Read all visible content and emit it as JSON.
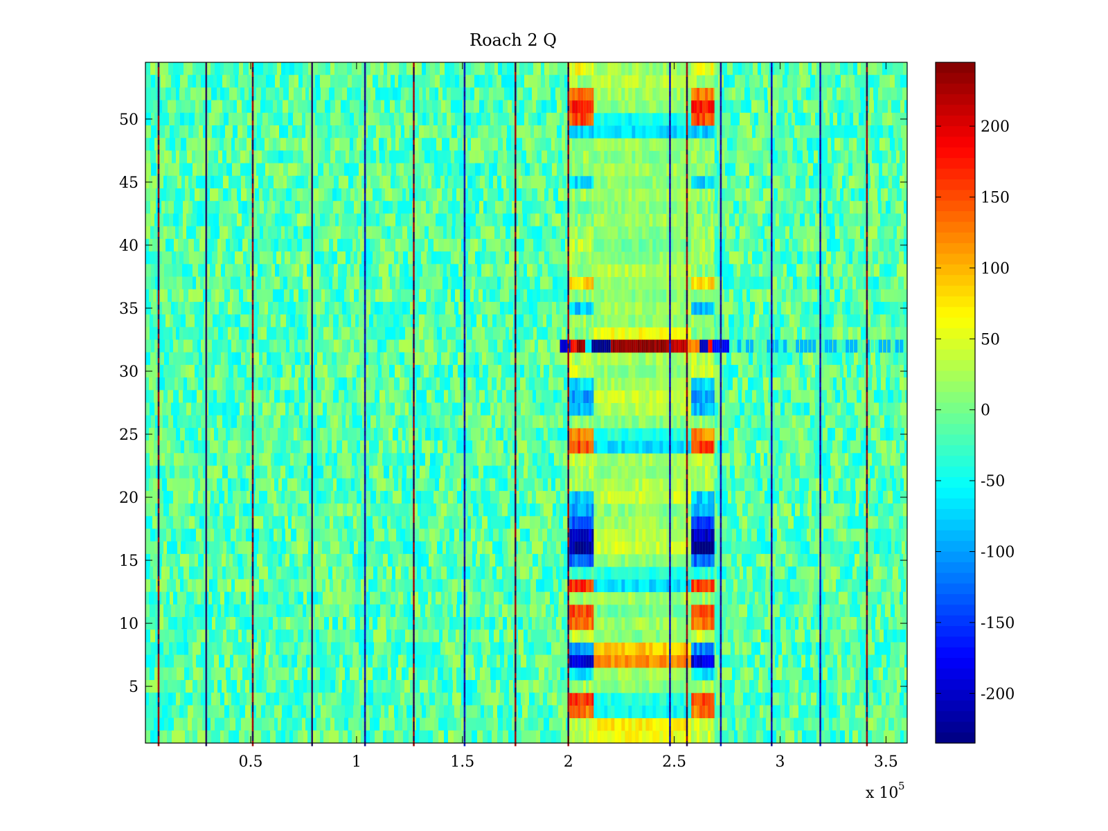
{
  "chart_data": {
    "type": "heatmap",
    "title": "Roach 2 Q",
    "colormap": "jet",
    "x_range": [
      300,
      360000
    ],
    "y_range": [
      0.5,
      54.5
    ],
    "x_ticks": [
      50000,
      100000,
      150000,
      200000,
      250000,
      300000,
      350000
    ],
    "x_tick_labels": [
      "0.5",
      "1",
      "1.5",
      "2",
      "2.5",
      "3",
      "3.5"
    ],
    "x_exponent_label": "x 10",
    "x_exponent_power": "5",
    "y_ticks": [
      5,
      10,
      15,
      20,
      25,
      30,
      35,
      40,
      45,
      50
    ],
    "y_tick_labels": [
      "5",
      "10",
      "15",
      "20",
      "25",
      "30",
      "35",
      "40",
      "45",
      "50"
    ],
    "rows": 54,
    "colorbar": {
      "range": [
        -235,
        245
      ],
      "ticks": [
        -200,
        -150,
        -100,
        -50,
        0,
        50,
        100,
        150,
        200
      ],
      "tick_labels": [
        "-200",
        "-150",
        "-100",
        "-50",
        "0",
        "50",
        "100",
        "150",
        "200"
      ]
    },
    "vertical_lines": [
      {
        "x": 6500,
        "color": "red"
      },
      {
        "x": 29000,
        "color": "dark"
      },
      {
        "x": 51000,
        "color": "red"
      },
      {
        "x": 79000,
        "color": "dark"
      },
      {
        "x": 104000,
        "color": "blue"
      },
      {
        "x": 127000,
        "color": "red"
      },
      {
        "x": 151000,
        "color": "blue"
      },
      {
        "x": 175000,
        "color": "red"
      },
      {
        "x": 200000,
        "color": "red"
      },
      {
        "x": 248000,
        "color": "blue"
      },
      {
        "x": 256000,
        "color": "red"
      },
      {
        "x": 272000,
        "color": "blue"
      },
      {
        "x": 296000,
        "color": "blue"
      },
      {
        "x": 319000,
        "color": "blue"
      },
      {
        "x": 341000,
        "color": "red"
      }
    ],
    "anomaly_bands": [
      {
        "x_start": 200500,
        "x_end": 212000
      },
      {
        "x_start": 258000,
        "x_end": 269000
      }
    ],
    "anomaly_row_values": {
      "1": 40,
      "2": 40,
      "3": 130,
      "4": 160,
      "5": 20,
      "6": -60,
      "7": -190,
      "8": -110,
      "9": 40,
      "10": 130,
      "11": 150,
      "12": 20,
      "13": 160,
      "14": -30,
      "15": -130,
      "16": -230,
      "17": -200,
      "18": -140,
      "19": -100,
      "20": -80,
      "21": 20,
      "22": 30,
      "23": 30,
      "24": 150,
      "25": 120,
      "26": 10,
      "27": -90,
      "28": -100,
      "29": -70,
      "30": 40,
      "31": 30,
      "32": 0,
      "33": 10,
      "34": 20,
      "35": -80,
      "36": 10,
      "37": 80,
      "38": 10,
      "39": 20,
      "40": 30,
      "41": 20,
      "42": 10,
      "43": 0,
      "44": 20,
      "45": -70,
      "46": 10,
      "47": 20,
      "48": 10,
      "49": -80,
      "50": 150,
      "51": 170,
      "52": 130,
      "53": 20,
      "54": 60
    },
    "middle_band": {
      "x_start": 212000,
      "x_end": 258000
    },
    "middle_row_values": {
      "1": 60,
      "2": 70,
      "3": -50,
      "4": -40,
      "5": 10,
      "6": 20,
      "7": 120,
      "8": 90,
      "9": 10,
      "10": 20,
      "11": 0,
      "12": 20,
      "13": -70,
      "14": -40,
      "15": 10,
      "16": 40,
      "17": 30,
      "18": 20,
      "19": 10,
      "20": 40,
      "21": 30,
      "22": 10,
      "23": 20,
      "24": -70,
      "25": -40,
      "26": 10,
      "27": 30,
      "28": 40,
      "29": 20,
      "30": 10,
      "31": 20,
      "33": 60,
      "34": 10,
      "35": 20,
      "36": 10,
      "37": 20,
      "38": 30,
      "39": 10,
      "40": 0,
      "41": 10,
      "42": 20,
      "43": 10,
      "44": 20,
      "45": 10,
      "46": 20,
      "47": 10,
      "48": 20,
      "49": -70,
      "50": -50,
      "51": 10,
      "52": 20,
      "53": 30,
      "54": 20
    },
    "row_32_segments": [
      {
        "x_start": 196000,
        "x_end": 201000,
        "value": -190
      },
      {
        "x_start": 201000,
        "x_end": 204000,
        "value": 180
      },
      {
        "x_start": 204000,
        "x_end": 208000,
        "value": 230
      },
      {
        "x_start": 208000,
        "x_end": 211000,
        "value": -60
      },
      {
        "x_start": 211000,
        "x_end": 220000,
        "value": -230
      },
      {
        "x_start": 220000,
        "x_end": 246000,
        "value": 235
      },
      {
        "x_start": 246000,
        "x_end": 256000,
        "value": 210
      },
      {
        "x_start": 256000,
        "x_end": 262000,
        "value": 120
      },
      {
        "x_start": 262000,
        "x_end": 266000,
        "value": -200
      },
      {
        "x_start": 266000,
        "x_end": 268000,
        "value": 180
      },
      {
        "x_start": 268000,
        "x_end": 276000,
        "value": -180
      }
    ]
  }
}
